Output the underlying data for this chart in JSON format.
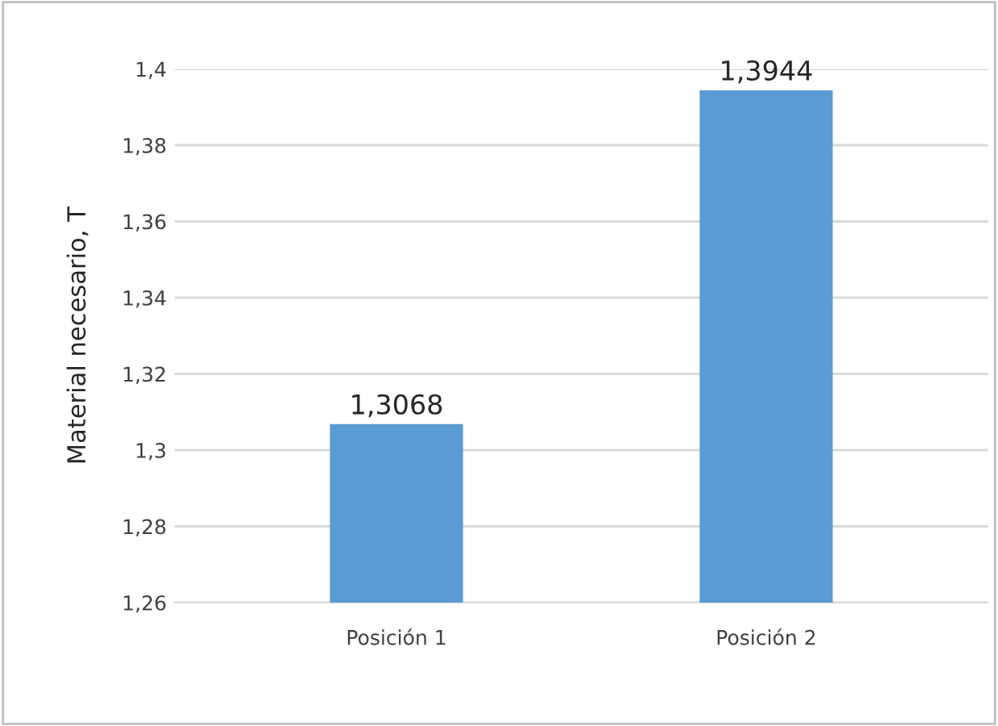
{
  "chart_data": {
    "type": "bar",
    "ylabel": "Material necesario, T",
    "categories": [
      "Posición 1",
      "Posición 2"
    ],
    "values": [
      1.3068,
      1.3944
    ],
    "value_labels": [
      "1,3068",
      "1,3944"
    ],
    "color": "#5b9bd5",
    "ylim": [
      1.26,
      1.4
    ],
    "yticks": [
      {
        "value": 1.26,
        "label": "1,26"
      },
      {
        "value": 1.28,
        "label": "1,28"
      },
      {
        "value": 1.3,
        "label": "1,3"
      },
      {
        "value": 1.32,
        "label": "1,32"
      },
      {
        "value": 1.34,
        "label": "1,34"
      },
      {
        "value": 1.36,
        "label": "1,36"
      },
      {
        "value": 1.38,
        "label": "1,38"
      },
      {
        "value": 1.4,
        "label": "1,4"
      }
    ],
    "grid": "y"
  }
}
